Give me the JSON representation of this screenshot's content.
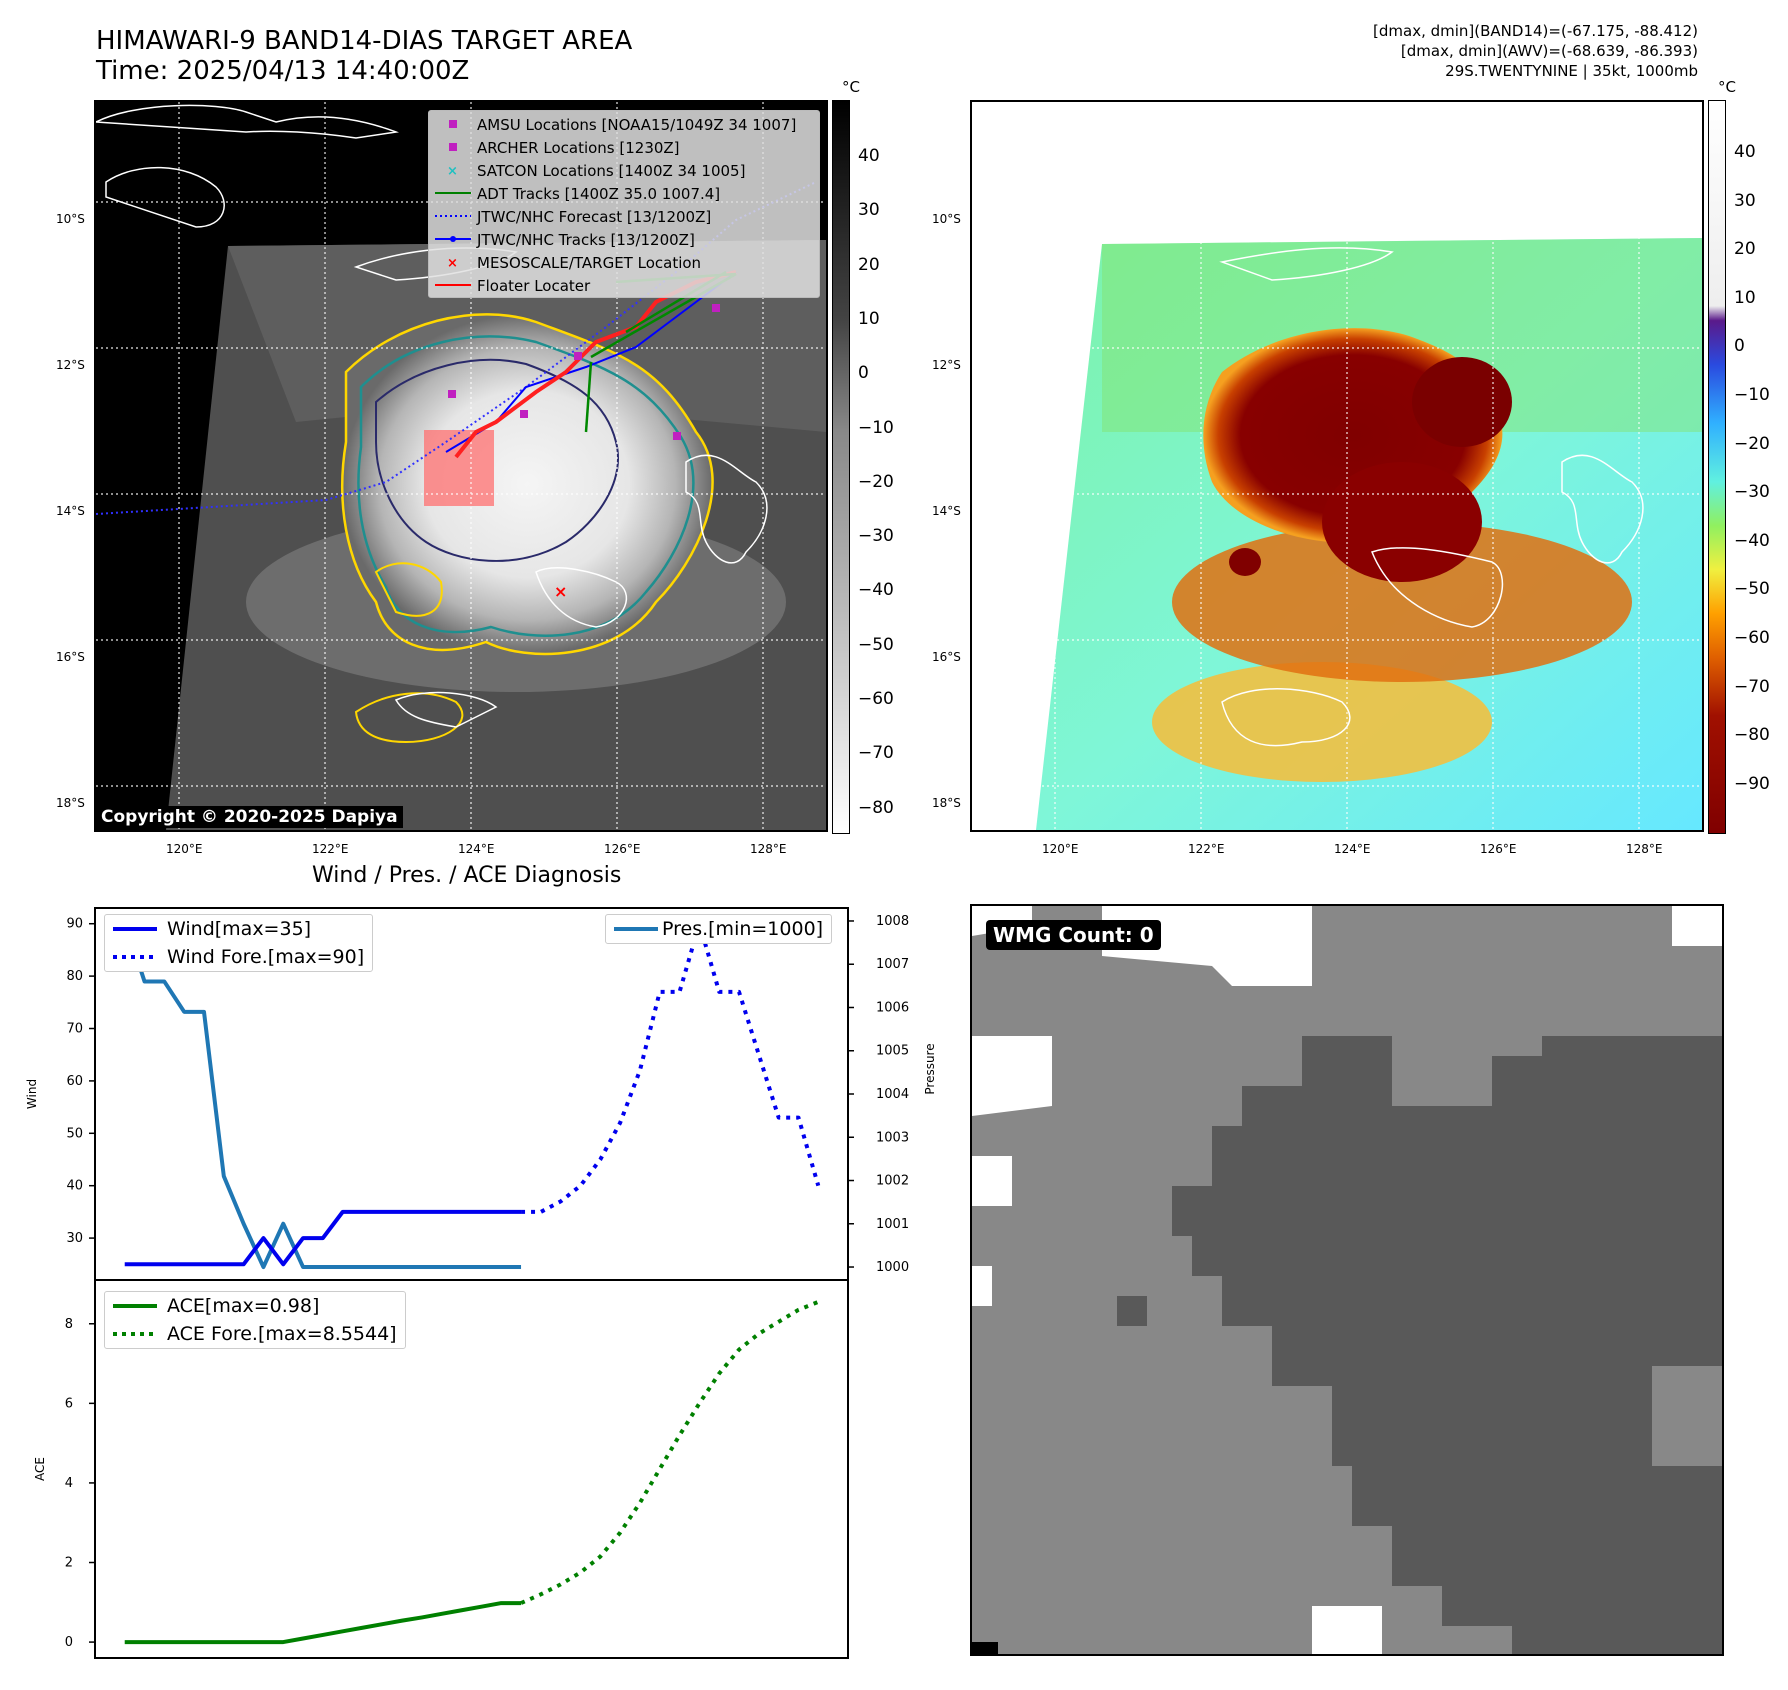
{
  "header": {
    "title_line1": "HIMAWARI-9 BAND14-DIAS TARGET AREA",
    "title_line2": "Time: 2025/04/13 14:40:00Z",
    "right_line1": "[dmax, dmin](BAND14)=(-67.175, -88.412)",
    "right_line2": "[dmax, dmin](AWV)=(-68.639, -86.393)",
    "right_line3": "29S.TWENTYNINE | 35kt, 1000mb"
  },
  "map": {
    "lat_labels": [
      "10°S",
      "12°S",
      "14°S",
      "16°S",
      "18°S"
    ],
    "lon_labels": [
      "120°E",
      "122°E",
      "124°E",
      "126°E",
      "128°E"
    ],
    "copyright": "Copyright © 2020-2025 Dapiya",
    "colorbar_unit": "°C",
    "gray_ticks": [
      "40",
      "30",
      "20",
      "10",
      "0",
      "−10",
      "−20",
      "−30",
      "−40",
      "−50",
      "−60",
      "−70",
      "−80"
    ],
    "color_ticks": [
      "40",
      "30",
      "20",
      "10",
      "0",
      "−10",
      "−20",
      "−30",
      "−40",
      "−50",
      "−60",
      "−70",
      "−80",
      "−90"
    ],
    "legend": [
      {
        "label": "AMSU Locations [NOAA15/1049Z 34 1007]",
        "symbol": "square",
        "color": "#c020c0"
      },
      {
        "label": "ARCHER Locations [1230Z]",
        "symbol": "square",
        "color": "#c020c0"
      },
      {
        "label": "SATCON Locations [1400Z 34 1005]",
        "symbol": "x",
        "color": "#20c0c0"
      },
      {
        "label": "ADT Tracks [1400Z 35.0 1007.4]",
        "symbol": "line",
        "color": "#008000"
      },
      {
        "label": "JTWC/NHC Forecast [13/1200Z]",
        "symbol": "dotted",
        "color": "#0000ff"
      },
      {
        "label": "JTWC/NHC Tracks [13/1200Z]",
        "symbol": "line-dot",
        "color": "#0000ff"
      },
      {
        "label": "MESOSCALE/TARGET Location",
        "symbol": "x",
        "color": "#ff0000"
      },
      {
        "label": "Floater Locater",
        "symbol": "line",
        "color": "#ff0000"
      }
    ]
  },
  "diagnosis": {
    "title": "Wind / Pres. / ACE Diagnosis",
    "wind_axis_label": "Wind",
    "pres_axis_label": "Pressure",
    "ace_axis_label": "ACE",
    "legend_wind": "Wind[max=35]",
    "legend_wind_fore": "Wind Fore.[max=90]",
    "legend_pres": "Pres.[min=1000]",
    "legend_ace": "ACE[max=0.98]",
    "legend_ace_fore": "ACE Fore.[max=8.5544]"
  },
  "wmg": {
    "label": "WMG Count: 0"
  },
  "chart_data": [
    {
      "type": "line",
      "title": "Wind / Pres. / ACE Diagnosis",
      "ylabel": "Wind",
      "ylim": [
        22,
        93
      ],
      "y2label": "Pressure",
      "y2lim": [
        999.7,
        1008.3
      ],
      "yticks": [
        30,
        40,
        50,
        60,
        70,
        80,
        90
      ],
      "y2ticks": [
        1000,
        1001,
        1002,
        1003,
        1004,
        1005,
        1006,
        1007,
        1008
      ],
      "series": [
        {
          "name": "Wind[max=35]",
          "color": "#0000ee",
          "style": "solid",
          "axis": "left",
          "x": [
            0,
            1,
            2,
            3,
            4,
            5,
            6,
            7,
            8,
            9,
            10,
            11,
            12,
            13,
            14,
            15,
            16,
            17,
            18,
            19,
            20
          ],
          "y": [
            25,
            25,
            25,
            25,
            25,
            25,
            25,
            30,
            25,
            30,
            30,
            35,
            35,
            35,
            35,
            35,
            35,
            35,
            35,
            35,
            35
          ]
        },
        {
          "name": "Wind Fore.[max=90]",
          "color": "#0000ee",
          "style": "dotted",
          "axis": "left",
          "x": [
            20,
            21,
            22,
            23,
            24,
            25,
            26,
            27,
            28,
            29,
            30,
            31,
            32,
            33,
            34,
            35
          ],
          "y": [
            35,
            35,
            37,
            40,
            45,
            52,
            62,
            77,
            77,
            90,
            77,
            77,
            65,
            53,
            53,
            40
          ]
        },
        {
          "name": "Pres.[min=1000]",
          "color": "#1f77b4",
          "style": "solid",
          "axis": "right",
          "x": [
            0,
            1,
            2,
            3,
            4,
            5,
            6,
            7,
            8,
            9,
            10,
            11,
            12,
            13,
            14,
            15,
            16,
            17,
            18,
            19,
            20
          ],
          "y": [
            1008,
            1006.6,
            1006.6,
            1005.9,
            1005.9,
            1002.1,
            1001,
            1000,
            1001,
            1000,
            1000,
            1000,
            1000,
            1000,
            1000,
            1000,
            1000,
            1000,
            1000,
            1000,
            1000
          ]
        }
      ]
    },
    {
      "type": "line",
      "ylabel": "ACE",
      "ylim": [
        -0.4,
        9.1
      ],
      "yticks": [
        0,
        2,
        4,
        6,
        8
      ],
      "series": [
        {
          "name": "ACE[max=0.98]",
          "color": "#008000",
          "style": "solid",
          "x": [
            0,
            1,
            2,
            3,
            4,
            5,
            6,
            7,
            8,
            9,
            10,
            11,
            12,
            13,
            14,
            15,
            16,
            17,
            18,
            19,
            20
          ],
          "y": [
            0,
            0,
            0,
            0,
            0,
            0,
            0,
            0,
            0,
            0.09,
            0.18,
            0.27,
            0.36,
            0.45,
            0.54,
            0.62,
            0.71,
            0.8,
            0.89,
            0.98,
            0.98
          ]
        },
        {
          "name": "ACE Fore.[max=8.5544]",
          "color": "#008000",
          "style": "dotted",
          "x": [
            20,
            21,
            22,
            23,
            24,
            25,
            26,
            27,
            28,
            29,
            30,
            31,
            32,
            33,
            34,
            35
          ],
          "y": [
            0.98,
            1.2,
            1.45,
            1.75,
            2.15,
            2.75,
            3.5,
            4.35,
            5.2,
            6.0,
            6.75,
            7.35,
            7.75,
            8.05,
            8.35,
            8.55
          ]
        }
      ]
    }
  ]
}
